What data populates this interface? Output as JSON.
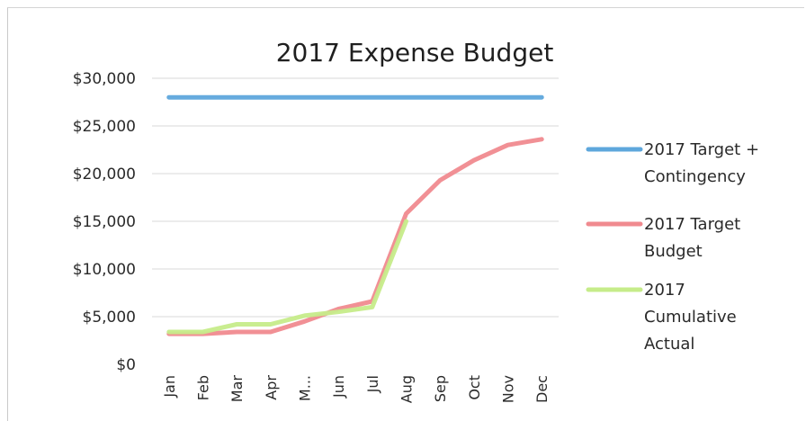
{
  "chart_data": {
    "type": "line",
    "title": "2017 Expense Budget",
    "xlabel": "",
    "ylabel": "",
    "categories": [
      "Jan",
      "Feb",
      "Mar",
      "Apr",
      "M...",
      "Jun",
      "Jul",
      "Aug",
      "Sep",
      "Oct",
      "Nov",
      "Dec"
    ],
    "ylim": [
      0,
      30000
    ],
    "yticks": [
      "$0",
      "$5,000",
      "$10,000",
      "$15,000",
      "$20,000",
      "$25,000",
      "$30,000"
    ],
    "grid": true,
    "legend_position": "right",
    "series": [
      {
        "name": "2017 Target + Contingency",
        "color": "#5ea7dc",
        "values": [
          28000,
          28000,
          28000,
          28000,
          28000,
          28000,
          28000,
          28000,
          28000,
          28000,
          28000,
          28000
        ]
      },
      {
        "name": "2017 Target Budget",
        "color": "#f08a8f",
        "values": [
          3200,
          3200,
          3400,
          3400,
          4500,
          5800,
          6600,
          15800,
          19300,
          21400,
          23000,
          23600
        ]
      },
      {
        "name": "2017 Cumulative Actual",
        "color": "#c6ec8a",
        "values": [
          3400,
          3400,
          4200,
          4200,
          5100,
          5500,
          6000,
          15000,
          null,
          null,
          null,
          null
        ]
      }
    ],
    "legend_lines": [
      [
        "2017 Target +",
        "Contingency"
      ],
      [
        "2017 Target",
        "Budget"
      ],
      [
        "2017",
        "Cumulative",
        "Actual"
      ]
    ]
  }
}
